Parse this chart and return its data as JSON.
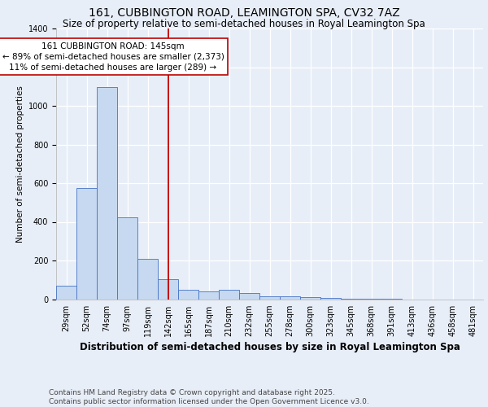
{
  "title1": "161, CUBBINGTON ROAD, LEAMINGTON SPA, CV32 7AZ",
  "title2": "Size of property relative to semi-detached houses in Royal Leamington Spa",
  "xlabel": "Distribution of semi-detached houses by size in Royal Leamington Spa",
  "ylabel": "Number of semi-detached properties",
  "footnote": "Contains HM Land Registry data © Crown copyright and database right 2025.\nContains public sector information licensed under the Open Government Licence v3.0.",
  "categories": [
    "29sqm",
    "52sqm",
    "74sqm",
    "97sqm",
    "119sqm",
    "142sqm",
    "165sqm",
    "187sqm",
    "210sqm",
    "232sqm",
    "255sqm",
    "278sqm",
    "300sqm",
    "323sqm",
    "345sqm",
    "368sqm",
    "391sqm",
    "413sqm",
    "436sqm",
    "458sqm",
    "481sqm"
  ],
  "values": [
    70,
    575,
    1095,
    425,
    210,
    105,
    50,
    40,
    50,
    30,
    15,
    15,
    10,
    5,
    2,
    1,
    1,
    0,
    0,
    0,
    0
  ],
  "bar_color": "#c6d9f0",
  "bar_edge_color": "#4472c4",
  "vline_x_index": 5,
  "vline_color": "#c00000",
  "annotation_line1": "161 CUBBINGTON ROAD: 145sqm",
  "annotation_line2": "← 89% of semi-detached houses are smaller (2,373)",
  "annotation_line3": "11% of semi-detached houses are larger (289) →",
  "annotation_box_facecolor": "#ffffff",
  "annotation_box_edgecolor": "#c00000",
  "ylim": [
    0,
    1400
  ],
  "background_color": "#e8eef8",
  "title1_fontsize": 10,
  "title2_fontsize": 8.5,
  "xlabel_fontsize": 8.5,
  "ylabel_fontsize": 7.5,
  "tick_fontsize": 7,
  "annotation_fontsize": 7.5,
  "footnote_fontsize": 6.5
}
